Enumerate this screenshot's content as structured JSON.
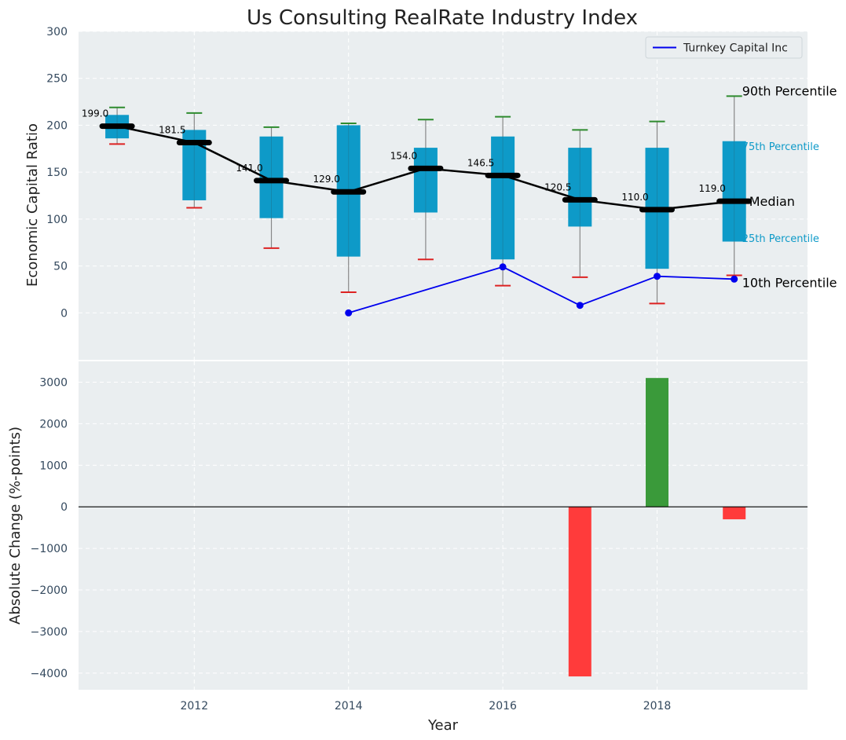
{
  "title": "Us Consulting RealRate Industry Index",
  "chart_data": [
    {
      "type": "box",
      "ylabel": "Economic Capital Ratio",
      "ylim": [
        -50,
        300
      ],
      "yticks": [
        0,
        50,
        100,
        150,
        200,
        250,
        300
      ],
      "xlim": [
        2010.5,
        2019.95
      ],
      "grid": true,
      "legend": {
        "placement": "top-right",
        "entries": [
          {
            "label": "Turnkey Capital Inc",
            "color": "#0000ee"
          }
        ]
      },
      "years": [
        2011,
        2012,
        2013,
        2014,
        2015,
        2016,
        2017,
        2018,
        2019
      ],
      "p10": [
        180,
        112,
        69,
        22,
        57,
        29,
        38,
        10,
        40
      ],
      "p25": [
        186,
        120,
        101,
        60,
        107,
        57,
        92,
        47,
        76
      ],
      "median": [
        199.0,
        181.5,
        141.0,
        129.0,
        154.0,
        146.5,
        120.5,
        110.0,
        119.0
      ],
      "p75": [
        211,
        195,
        188,
        200,
        176,
        188,
        176,
        176,
        183
      ],
      "p90": [
        219,
        213,
        198,
        202,
        206,
        209,
        195,
        204,
        231
      ],
      "median_labels": [
        "199.0",
        "181.5",
        "141.0",
        "129.0",
        "154.0",
        "146.5",
        "120.5",
        "110.0",
        "119.0"
      ],
      "company_series": {
        "name": "Turnkey Capital Inc",
        "x": [
          2014,
          2016,
          2017,
          2018,
          2019
        ],
        "y": [
          0,
          49,
          8,
          39,
          36
        ]
      },
      "percentile_labels": {
        "p90": "90th Percentile",
        "p75": "75th Percentile",
        "median": "Median",
        "p25": "25th Percentile",
        "p10": "10th Percentile"
      },
      "colors": {
        "box": "#0e9ac8",
        "median_line": "#000000",
        "whisker": "#888888",
        "cap_top": "#2e8b2e",
        "cap_bottom": "#dd2222",
        "company": "#0000ee"
      }
    },
    {
      "type": "bar",
      "ylabel": "Absolute Change (%-points)",
      "xlabel": "Year",
      "ylim": [
        -4400,
        3500
      ],
      "yticks": [
        -4000,
        -3000,
        -2000,
        -1000,
        0,
        1000,
        2000,
        3000
      ],
      "xticks": [
        2012,
        2014,
        2016,
        2018
      ],
      "grid": true,
      "x": [
        2017,
        2018,
        2019
      ],
      "values": [
        -4080,
        3100,
        -300
      ],
      "colors": {
        "positive": "#3a9a3a",
        "negative": "#ff3b3b"
      }
    }
  ]
}
